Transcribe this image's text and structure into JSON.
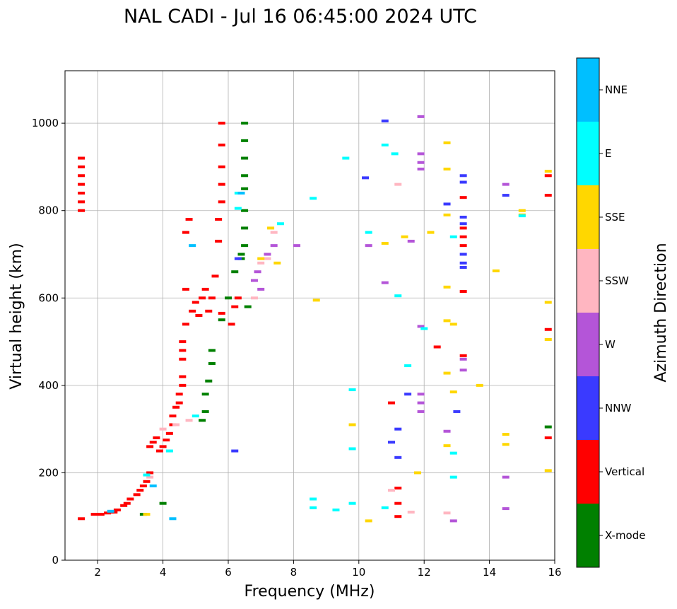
{
  "chart_data": {
    "type": "scatter",
    "title": "NAL CADI - Jul 16 06:45:00 2024 UTC",
    "xlabel": "Frequency (MHz)",
    "ylabel": "Virtual height (km)",
    "xlim": [
      1,
      16
    ],
    "ylim": [
      0,
      1120
    ],
    "xticks": [
      2,
      4,
      6,
      8,
      10,
      12,
      14,
      16
    ],
    "yticks": [
      0,
      200,
      400,
      600,
      800,
      1000
    ],
    "grid": true,
    "colorbar": {
      "label": "Azimuth Direction",
      "categories": [
        {
          "name": "X-mode",
          "color": "#008000"
        },
        {
          "name": "Vertical",
          "color": "#ff0000"
        },
        {
          "name": "NNW",
          "color": "#3a3aff"
        },
        {
          "name": "W",
          "color": "#b455d8"
        },
        {
          "name": "SSW",
          "color": "#ffb6c1"
        },
        {
          "name": "SSE",
          "color": "#ffd700"
        },
        {
          "name": "E",
          "color": "#00ffff"
        },
        {
          "name": "NNE",
          "color": "#00bfff"
        }
      ]
    },
    "series": [
      {
        "name": "Vertical",
        "points": [
          [
            1.5,
            800
          ],
          [
            1.5,
            820
          ],
          [
            1.5,
            840
          ],
          [
            1.5,
            860
          ],
          [
            1.5,
            880
          ],
          [
            1.5,
            900
          ],
          [
            1.5,
            920
          ],
          [
            1.5,
            95
          ],
          [
            1.9,
            105
          ],
          [
            2.1,
            105
          ],
          [
            2.3,
            108
          ],
          [
            2.5,
            110
          ],
          [
            2.6,
            115
          ],
          [
            2.8,
            125
          ],
          [
            2.9,
            130
          ],
          [
            3.0,
            140
          ],
          [
            3.2,
            150
          ],
          [
            3.3,
            160
          ],
          [
            3.4,
            170
          ],
          [
            3.5,
            180
          ],
          [
            3.6,
            200
          ],
          [
            3.6,
            260
          ],
          [
            3.7,
            270
          ],
          [
            3.8,
            280
          ],
          [
            3.9,
            250
          ],
          [
            4.0,
            260
          ],
          [
            4.1,
            275
          ],
          [
            4.2,
            290
          ],
          [
            4.3,
            310
          ],
          [
            4.3,
            330
          ],
          [
            4.4,
            350
          ],
          [
            4.5,
            360
          ],
          [
            4.5,
            380
          ],
          [
            4.6,
            400
          ],
          [
            4.6,
            420
          ],
          [
            4.6,
            460
          ],
          [
            4.6,
            480
          ],
          [
            4.6,
            500
          ],
          [
            4.7,
            540
          ],
          [
            4.7,
            620
          ],
          [
            4.7,
            750
          ],
          [
            4.8,
            780
          ],
          [
            4.9,
            570
          ],
          [
            5.0,
            590
          ],
          [
            5.1,
            560
          ],
          [
            5.2,
            600
          ],
          [
            5.3,
            620
          ],
          [
            5.4,
            570
          ],
          [
            5.5,
            600
          ],
          [
            5.6,
            650
          ],
          [
            5.7,
            730
          ],
          [
            5.7,
            780
          ],
          [
            5.8,
            820
          ],
          [
            5.8,
            860
          ],
          [
            5.8,
            900
          ],
          [
            5.8,
            950
          ],
          [
            5.8,
            1000
          ],
          [
            5.8,
            565
          ],
          [
            6.1,
            540
          ],
          [
            6.2,
            580
          ],
          [
            6.3,
            600
          ],
          [
            13.2,
            830
          ],
          [
            13.2,
            760
          ],
          [
            13.2,
            740
          ],
          [
            13.2,
            720
          ],
          [
            13.2,
            615
          ],
          [
            13.2,
            468
          ],
          [
            12.4,
            488
          ],
          [
            11.0,
            360
          ],
          [
            11.2,
            165
          ],
          [
            11.2,
            130
          ],
          [
            11.2,
            100
          ],
          [
            15.8,
            880
          ],
          [
            15.8,
            835
          ],
          [
            15.8,
            528
          ],
          [
            15.8,
            280
          ]
        ]
      },
      {
        "name": "X-mode",
        "points": [
          [
            3.4,
            105
          ],
          [
            4.0,
            130
          ],
          [
            5.2,
            320
          ],
          [
            5.3,
            340
          ],
          [
            5.3,
            380
          ],
          [
            5.4,
            410
          ],
          [
            5.5,
            450
          ],
          [
            5.5,
            480
          ],
          [
            5.8,
            550
          ],
          [
            6.0,
            600
          ],
          [
            6.2,
            660
          ],
          [
            6.4,
            700
          ],
          [
            6.4,
            690
          ],
          [
            6.5,
            720
          ],
          [
            6.5,
            760
          ],
          [
            6.5,
            800
          ],
          [
            6.5,
            850
          ],
          [
            6.5,
            880
          ],
          [
            6.5,
            920
          ],
          [
            6.5,
            960
          ],
          [
            6.5,
            1000
          ],
          [
            6.6,
            580
          ],
          [
            15.8,
            305
          ]
        ]
      },
      {
        "name": "NNW",
        "points": [
          [
            6.2,
            250
          ],
          [
            6.3,
            690
          ],
          [
            10.8,
            1005
          ],
          [
            10.2,
            875
          ],
          [
            11.5,
            380
          ],
          [
            11.2,
            300
          ],
          [
            11.0,
            270
          ],
          [
            11.2,
            235
          ],
          [
            13.2,
            880
          ],
          [
            13.2,
            865
          ],
          [
            13.2,
            785
          ],
          [
            13.2,
            770
          ],
          [
            13.2,
            700
          ],
          [
            13.2,
            680
          ],
          [
            13.2,
            670
          ],
          [
            13.0,
            340
          ],
          [
            14.5,
            835
          ],
          [
            12.7,
            815
          ]
        ]
      },
      {
        "name": "W",
        "points": [
          [
            6.8,
            640
          ],
          [
            6.9,
            660
          ],
          [
            7.0,
            620
          ],
          [
            7.2,
            700
          ],
          [
            7.4,
            720
          ],
          [
            11.9,
            1015
          ],
          [
            11.9,
            930
          ],
          [
            11.9,
            910
          ],
          [
            11.9,
            895
          ],
          [
            11.9,
            535
          ],
          [
            11.9,
            340
          ],
          [
            11.9,
            360
          ],
          [
            11.9,
            380
          ],
          [
            12.7,
            295
          ],
          [
            12.9,
            90
          ],
          [
            13.2,
            460
          ],
          [
            13.2,
            435
          ],
          [
            14.5,
            860
          ],
          [
            14.5,
            190
          ],
          [
            14.5,
            118
          ],
          [
            10.8,
            635
          ],
          [
            10.3,
            720
          ],
          [
            11.6,
            730
          ],
          [
            8.1,
            720
          ]
        ]
      },
      {
        "name": "SSW",
        "points": [
          [
            3.6,
            190
          ],
          [
            4.0,
            300
          ],
          [
            4.4,
            310
          ],
          [
            4.8,
            320
          ],
          [
            6.8,
            600
          ],
          [
            7.0,
            680
          ],
          [
            7.2,
            690
          ],
          [
            12.7,
            108
          ],
          [
            11.6,
            110
          ],
          [
            11.0,
            160
          ],
          [
            11.2,
            860
          ],
          [
            7.4,
            750
          ]
        ]
      },
      {
        "name": "SSE",
        "points": [
          [
            3.5,
            105
          ],
          [
            7.0,
            690
          ],
          [
            7.3,
            760
          ],
          [
            7.5,
            680
          ],
          [
            8.7,
            595
          ],
          [
            9.8,
            310
          ],
          [
            10.3,
            90
          ],
          [
            10.8,
            725
          ],
          [
            11.8,
            200
          ],
          [
            12.2,
            750
          ],
          [
            12.7,
            955
          ],
          [
            12.7,
            895
          ],
          [
            12.7,
            790
          ],
          [
            12.7,
            625
          ],
          [
            12.7,
            548
          ],
          [
            12.7,
            428
          ],
          [
            12.7,
            262
          ],
          [
            12.9,
            540
          ],
          [
            12.9,
            385
          ],
          [
            13.7,
            400
          ],
          [
            14.2,
            662
          ],
          [
            14.5,
            288
          ],
          [
            14.5,
            265
          ],
          [
            15.0,
            800
          ],
          [
            15.0,
            790
          ],
          [
            15.8,
            890
          ],
          [
            15.8,
            590
          ],
          [
            15.8,
            505
          ],
          [
            15.8,
            205
          ],
          [
            11.4,
            740
          ]
        ]
      },
      {
        "name": "E",
        "points": [
          [
            3.5,
            195
          ],
          [
            4.2,
            250
          ],
          [
            5.0,
            330
          ],
          [
            6.3,
            840
          ],
          [
            6.3,
            805
          ],
          [
            7.6,
            770
          ],
          [
            8.6,
            828
          ],
          [
            8.6,
            140
          ],
          [
            8.6,
            120
          ],
          [
            9.3,
            115
          ],
          [
            9.6,
            920
          ],
          [
            9.8,
            390
          ],
          [
            9.8,
            255
          ],
          [
            9.8,
            130
          ],
          [
            10.3,
            750
          ],
          [
            10.8,
            950
          ],
          [
            10.8,
            120
          ],
          [
            11.1,
            930
          ],
          [
            11.2,
            605
          ],
          [
            11.5,
            445
          ],
          [
            12.0,
            530
          ],
          [
            12.9,
            740
          ],
          [
            12.9,
            245
          ],
          [
            12.9,
            190
          ],
          [
            15.0,
            788
          ]
        ]
      },
      {
        "name": "NNE",
        "points": [
          [
            2.4,
            112
          ],
          [
            3.7,
            170
          ],
          [
            4.3,
            95
          ],
          [
            4.9,
            720
          ],
          [
            6.4,
            840
          ]
        ]
      }
    ]
  }
}
